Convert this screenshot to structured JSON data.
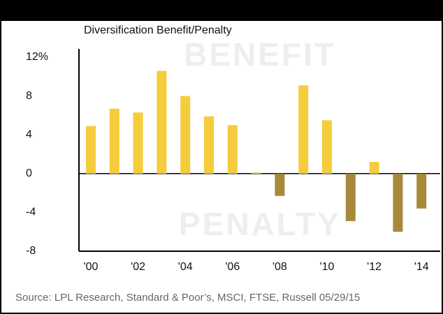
{
  "chart_data": {
    "type": "bar",
    "title": "Diversification Benefit/Penalty",
    "categories": [
      "'00",
      null,
      "'02",
      null,
      "'04",
      null,
      "'06",
      null,
      "'08",
      null,
      "'10",
      null,
      "'12",
      null,
      "'14"
    ],
    "values": [
      4.9,
      6.7,
      6.3,
      10.6,
      8.0,
      5.9,
      5.0,
      0.1,
      -2.3,
      9.1,
      5.5,
      -4.9,
      1.2,
      -6.0,
      -3.6
    ],
    "positive_color": "#f5cc3c",
    "negative_color": "#a8893a",
    "ylim": [
      -8,
      12
    ],
    "yticks": [
      -8,
      -4,
      0,
      4,
      8,
      {
        "value": 12,
        "label": "12%"
      }
    ],
    "annotations": [
      "BENEFIT",
      "PENALTY"
    ],
    "source": "Source: LPL Research, Standard & Poor’s, MSCI, FTSE, Russell   05/29/15"
  }
}
